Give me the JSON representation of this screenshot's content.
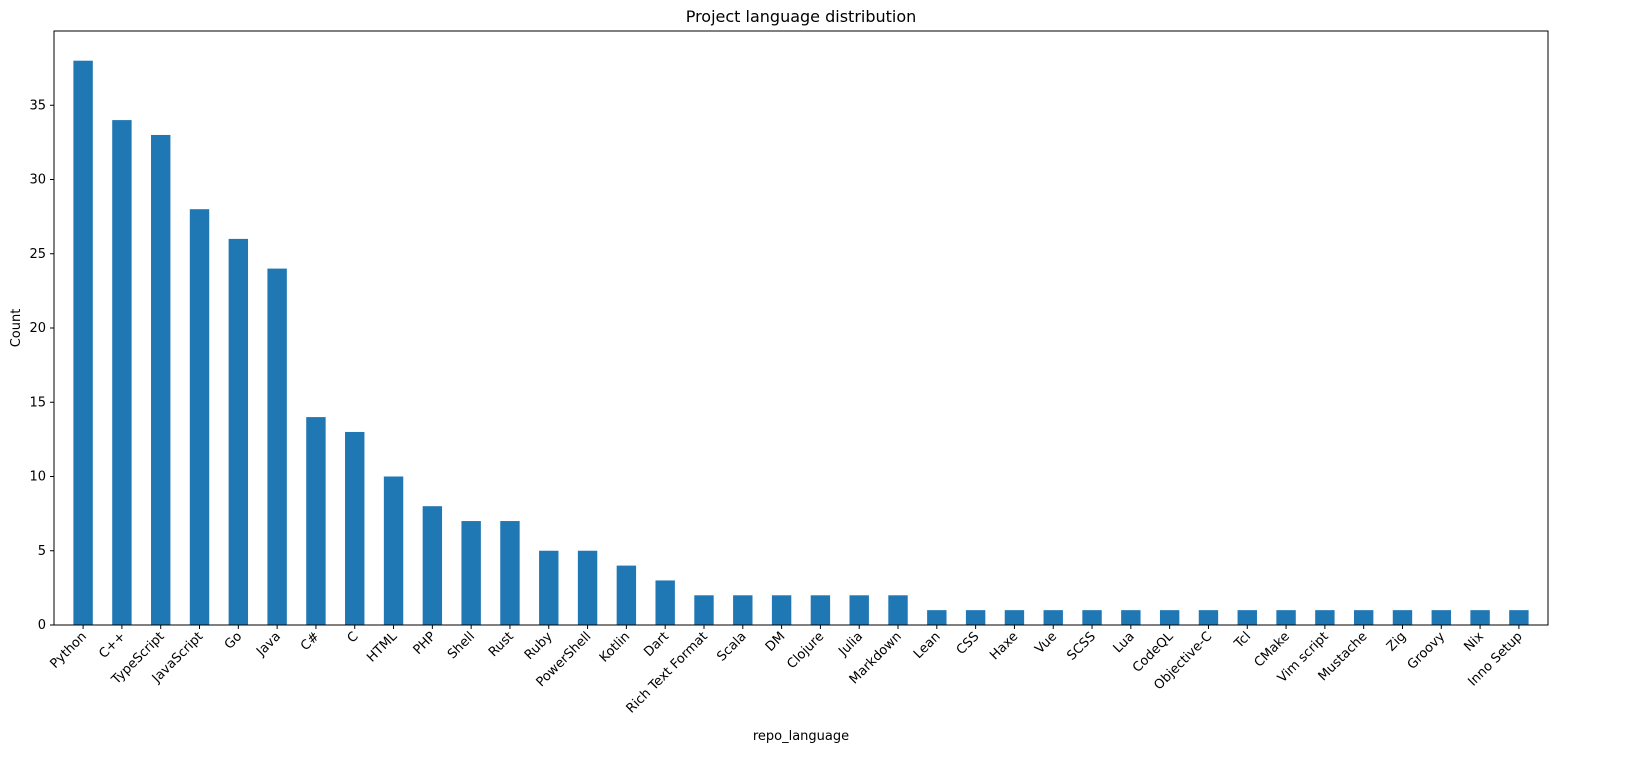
{
  "chart_data": {
    "type": "bar",
    "title": "Project language distribution",
    "xlabel": "repo_language",
    "ylabel": "Count",
    "ylim": [
      0,
      40
    ],
    "yticks": [
      0,
      5,
      10,
      15,
      20,
      25,
      30,
      35
    ],
    "grid": false,
    "legend": "none",
    "bar_color": "#1f77b4",
    "categories": [
      "Python",
      "C++",
      "TypeScript",
      "JavaScript",
      "Go",
      "Java",
      "C#",
      "C",
      "HTML",
      "PHP",
      "Shell",
      "Rust",
      "Ruby",
      "PowerShell",
      "Kotlin",
      "Dart",
      "Rich Text Format",
      "Scala",
      "DM",
      "Clojure",
      "Julia",
      "Markdown",
      "Lean",
      "CSS",
      "Haxe",
      "Vue",
      "SCSS",
      "Lua",
      "CodeQL",
      "Objective-C",
      "Tcl",
      "CMake",
      "Vim script",
      "Mustache",
      "Zig",
      "Groovy",
      "Nix",
      "Inno Setup"
    ],
    "values": [
      38,
      34,
      33,
      28,
      26,
      24,
      14,
      13,
      10,
      8,
      7,
      7,
      5,
      5,
      4,
      3,
      2,
      2,
      2,
      2,
      2,
      2,
      1,
      1,
      1,
      1,
      1,
      1,
      1,
      1,
      1,
      1,
      1,
      1,
      1,
      1,
      1,
      1
    ]
  }
}
